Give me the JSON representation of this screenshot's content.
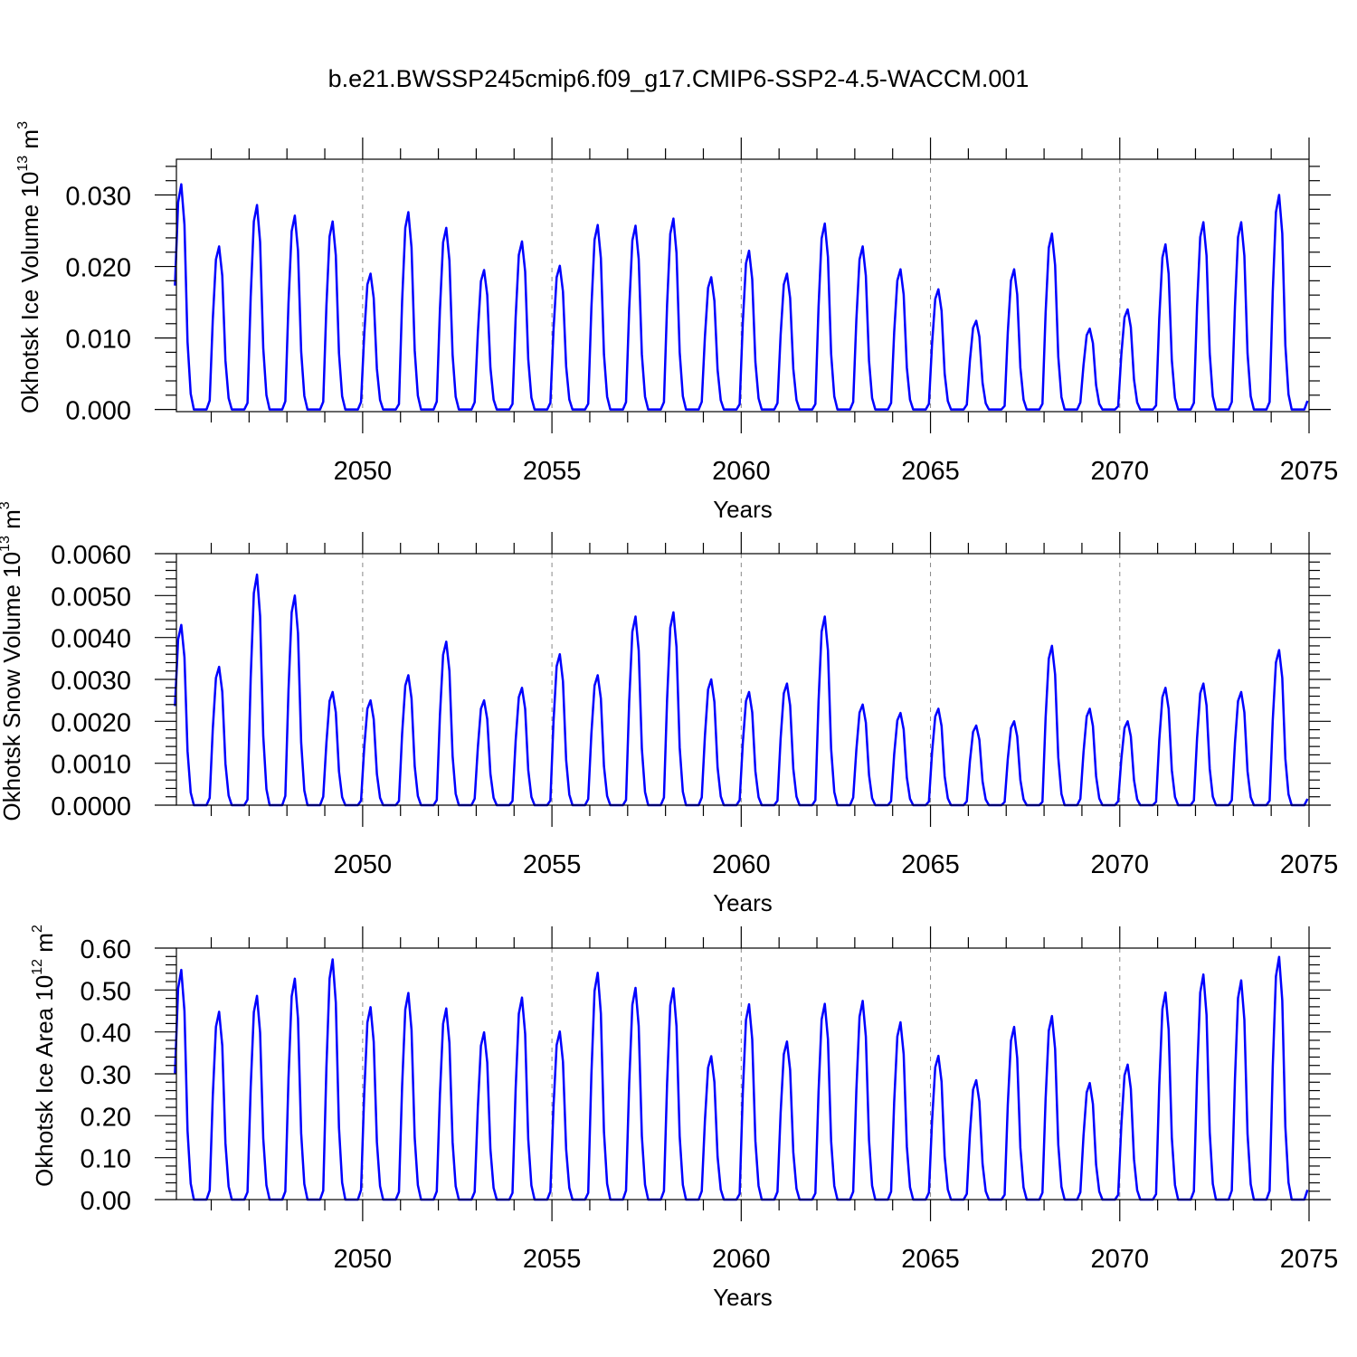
{
  "title": "b.e21.BWSSP245cmip6.f09_g17.CMIP6-SSP2-4.5-WACCM.001",
  "colors": {
    "line": "#0000ff",
    "axis": "#000000",
    "grid": "#888888"
  },
  "chart_data": [
    {
      "type": "line",
      "name": "ice-volume",
      "ylabel": "Okhotsk Ice Volume 10",
      "ylabel_exp": "13",
      "ylabel_unit": " m",
      "ylabel_unit_exp": "3",
      "xlabel": "Years",
      "xlim": [
        2045.08,
        2075.0
      ],
      "ylim": [
        -0.0003,
        0.035
      ],
      "yticks": [
        0.0,
        0.01,
        0.02,
        0.03
      ],
      "ytick_labels": [
        "0.000",
        "0.010",
        "0.020",
        "0.030"
      ],
      "xticks": [
        2050,
        2055,
        2060,
        2065,
        2070,
        2075
      ],
      "xtick_labels": [
        "2050",
        "2055",
        "2060",
        "2065",
        "2070",
        "2075"
      ],
      "peaks": [
        0.0315,
        0.0228,
        0.0286,
        0.0271,
        0.0263,
        0.019,
        0.0276,
        0.0254,
        0.0195,
        0.0235,
        0.0201,
        0.0258,
        0.0257,
        0.0267,
        0.0185,
        0.0222,
        0.019,
        0.026,
        0.0228,
        0.0196,
        0.0168,
        0.0124,
        0.0196,
        0.0246,
        0.0113,
        0.014,
        0.0231,
        0.0262,
        0.0262,
        0.03
      ]
    },
    {
      "type": "line",
      "name": "snow-volume",
      "ylabel": "Okhotsk Snow Volume 10",
      "ylabel_exp": "13",
      "ylabel_unit": " m",
      "ylabel_unit_exp": "3",
      "xlabel": "Years",
      "xlim": [
        2045.08,
        2075.0
      ],
      "ylim": [
        0.0,
        0.006
      ],
      "yticks": [
        0.0,
        0.001,
        0.002,
        0.003,
        0.004,
        0.005,
        0.006
      ],
      "ytick_labels": [
        "0.0000",
        "0.0010",
        "0.0020",
        "0.0030",
        "0.0040",
        "0.0050",
        "0.0060"
      ],
      "xticks": [
        2050,
        2055,
        2060,
        2065,
        2070,
        2075
      ],
      "xtick_labels": [
        "2050",
        "2055",
        "2060",
        "2065",
        "2070",
        "2075"
      ],
      "peaks": [
        0.0043,
        0.0033,
        0.0055,
        0.005,
        0.0027,
        0.0025,
        0.0031,
        0.0039,
        0.0025,
        0.0028,
        0.0036,
        0.0031,
        0.0045,
        0.0046,
        0.003,
        0.0027,
        0.0029,
        0.0045,
        0.0024,
        0.0022,
        0.0023,
        0.0019,
        0.002,
        0.0038,
        0.0023,
        0.002,
        0.0028,
        0.0029,
        0.0027,
        0.0037
      ]
    },
    {
      "type": "line",
      "name": "ice-area",
      "ylabel": "Okhotsk Ice Area 10",
      "ylabel_exp": "12",
      "ylabel_unit": " m",
      "ylabel_unit_exp": "2",
      "xlabel": "Years",
      "xlim": [
        2045.08,
        2075.0
      ],
      "ylim": [
        0.0,
        0.6
      ],
      "yticks": [
        0.0,
        0.1,
        0.2,
        0.3,
        0.4,
        0.5,
        0.6
      ],
      "ytick_labels": [
        "0.00",
        "0.10",
        "0.20",
        "0.30",
        "0.40",
        "0.50",
        "0.60"
      ],
      "xticks": [
        2050,
        2055,
        2060,
        2065,
        2070,
        2075
      ],
      "xtick_labels": [
        "2050",
        "2055",
        "2060",
        "2065",
        "2070",
        "2075"
      ],
      "peaks": [
        0.548,
        0.448,
        0.486,
        0.527,
        0.573,
        0.459,
        0.493,
        0.456,
        0.399,
        0.482,
        0.401,
        0.541,
        0.505,
        0.504,
        0.342,
        0.466,
        0.377,
        0.467,
        0.474,
        0.423,
        0.343,
        0.285,
        0.412,
        0.438,
        0.278,
        0.322,
        0.494,
        0.537,
        0.523,
        0.579
      ]
    }
  ]
}
